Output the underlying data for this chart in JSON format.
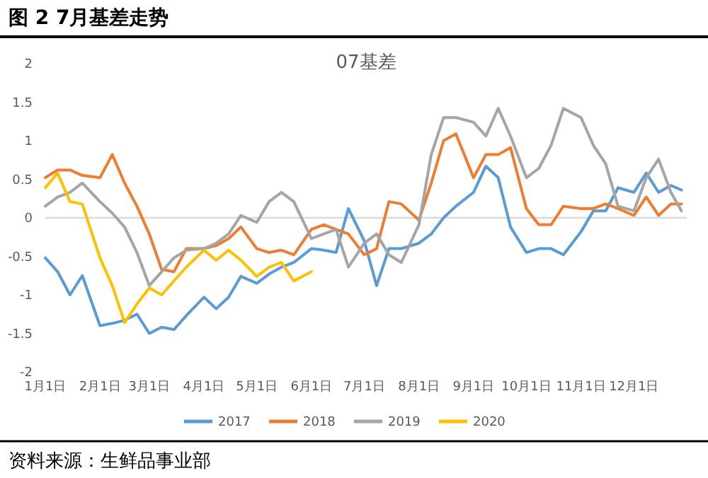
{
  "chart_data": {
    "type": "line",
    "title": "图 2 7月基差走势",
    "subtitle": "07基差",
    "annotations": [
      "资料来源：生鲜品事业部"
    ],
    "x": [
      "--01-01",
      "--01-08",
      "--01-15",
      "--01-22",
      "--02-01",
      "--02-08",
      "--02-15",
      "--02-22",
      "--03-01",
      "--03-08",
      "--03-15",
      "--03-22",
      "--04-01",
      "--04-08",
      "--04-15",
      "--04-22",
      "--05-01",
      "--05-08",
      "--05-15",
      "--05-22",
      "--06-01",
      "--06-08",
      "--06-15",
      "--06-22",
      "--07-01",
      "--07-08",
      "--07-15",
      "--07-22",
      "--08-01",
      "--08-08",
      "--08-15",
      "--08-22",
      "--09-01",
      "--09-08",
      "--09-15",
      "--09-22",
      "--10-01",
      "--10-08",
      "--10-15",
      "--10-22",
      "--11-01",
      "--11-08",
      "--11-15",
      "--11-22",
      "--12-01",
      "--12-08",
      "--12-15",
      "--12-22",
      "--12-28"
    ],
    "series": [
      {
        "name": "2017",
        "color": "#5b9bd5",
        "values": [
          -0.52,
          -0.7,
          -1.0,
          -0.75,
          -1.4,
          -1.37,
          -1.33,
          -1.25,
          -1.5,
          -1.42,
          -1.45,
          -1.27,
          -1.03,
          -1.18,
          -1.03,
          -0.76,
          -0.85,
          -0.73,
          -0.64,
          -0.58,
          -0.4,
          -0.42,
          -0.45,
          0.12,
          -0.3,
          -0.88,
          -0.4,
          -0.4,
          -0.33,
          -0.21,
          0,
          0.15,
          0.33,
          0.67,
          0.52,
          -0.12,
          -0.45,
          -0.4,
          -0.4,
          -0.48,
          -0.18,
          0.09,
          0.09,
          0.39,
          0.33,
          0.58,
          0.33,
          0.42,
          0.36
        ]
      },
      {
        "name": "2018",
        "color": "#ed7d31",
        "values": [
          0.52,
          0.62,
          0.62,
          0.55,
          0.52,
          0.82,
          0.45,
          0.15,
          -0.21,
          -0.67,
          -0.7,
          -0.4,
          -0.4,
          -0.36,
          -0.27,
          -0.12,
          -0.4,
          -0.45,
          -0.42,
          -0.48,
          -0.15,
          -0.09,
          -0.15,
          -0.21,
          -0.48,
          -0.4,
          0.21,
          0.18,
          -0.03,
          0.45,
          1.0,
          1.09,
          0.52,
          0.82,
          0.82,
          0.91,
          0.12,
          -0.09,
          -0.09,
          0.15,
          0.12,
          0.12,
          0.18,
          0.12,
          0.03,
          0.27,
          0.03,
          0.18,
          0.18
        ]
      },
      {
        "name": "2019",
        "color": "#a5a5a5",
        "values": [
          0.15,
          0.27,
          0.33,
          0.45,
          0.21,
          0.06,
          -0.12,
          -0.45,
          -0.88,
          -0.7,
          -0.52,
          -0.42,
          -0.4,
          -0.33,
          -0.21,
          0.03,
          -0.06,
          0.21,
          0.33,
          0.21,
          -0.27,
          -0.21,
          -0.15,
          -0.64,
          -0.33,
          -0.21,
          -0.48,
          -0.58,
          -0.09,
          0.82,
          1.3,
          1.3,
          1.24,
          1.06,
          1.42,
          1.06,
          0.52,
          0.64,
          0.94,
          1.42,
          1.3,
          0.94,
          0.7,
          0.15,
          0.09,
          0.52,
          0.76,
          0.33,
          0.09
        ]
      },
      {
        "name": "2020",
        "color": "#ffc000",
        "values": [
          0.39,
          0.58,
          0.21,
          0.18,
          -0.52,
          -0.88,
          -1.36,
          -1.12,
          -0.91,
          -1.0,
          -0.82,
          -0.64,
          -0.42,
          -0.55,
          -0.42,
          -0.55,
          -0.76,
          -0.64,
          -0.58,
          -0.82,
          -0.7,
          null,
          null,
          null,
          null,
          null,
          null,
          null,
          null,
          null,
          null,
          null,
          null,
          null,
          null,
          null,
          null,
          null,
          null,
          null,
          null,
          null,
          null,
          null,
          null,
          null,
          null,
          null,
          null
        ]
      }
    ],
    "xlim": [
      "--01-01",
      "--12-31"
    ],
    "xticks": [
      {
        "value": "--01-01",
        "label": "1月1日"
      },
      {
        "value": "--02-01",
        "label": "2月1日"
      },
      {
        "value": "--03-01",
        "label": "3月1日"
      },
      {
        "value": "--04-01",
        "label": "4月1日"
      },
      {
        "value": "--05-01",
        "label": "5月1日"
      },
      {
        "value": "--06-01",
        "label": "6月1日"
      },
      {
        "value": "--07-01",
        "label": "7月1日"
      },
      {
        "value": "--08-01",
        "label": "8月1日"
      },
      {
        "value": "--09-01",
        "label": "9月1日"
      },
      {
        "value": "--10-01",
        "label": "10月1日"
      },
      {
        "value": "--11-01",
        "label": "11月1日"
      },
      {
        "value": "--12-01",
        "label": "12月1日"
      }
    ],
    "ylim": [
      -2,
      2
    ],
    "yticks": [
      -2,
      -1.5,
      -1,
      -0.5,
      0,
      0.5,
      1,
      1.5,
      2
    ],
    "ref_lines": [
      {
        "axis": "y",
        "value": 0,
        "color": "#d9d9d9"
      }
    ],
    "legend": "bottom",
    "marker": "none",
    "line_style": "solid"
  }
}
